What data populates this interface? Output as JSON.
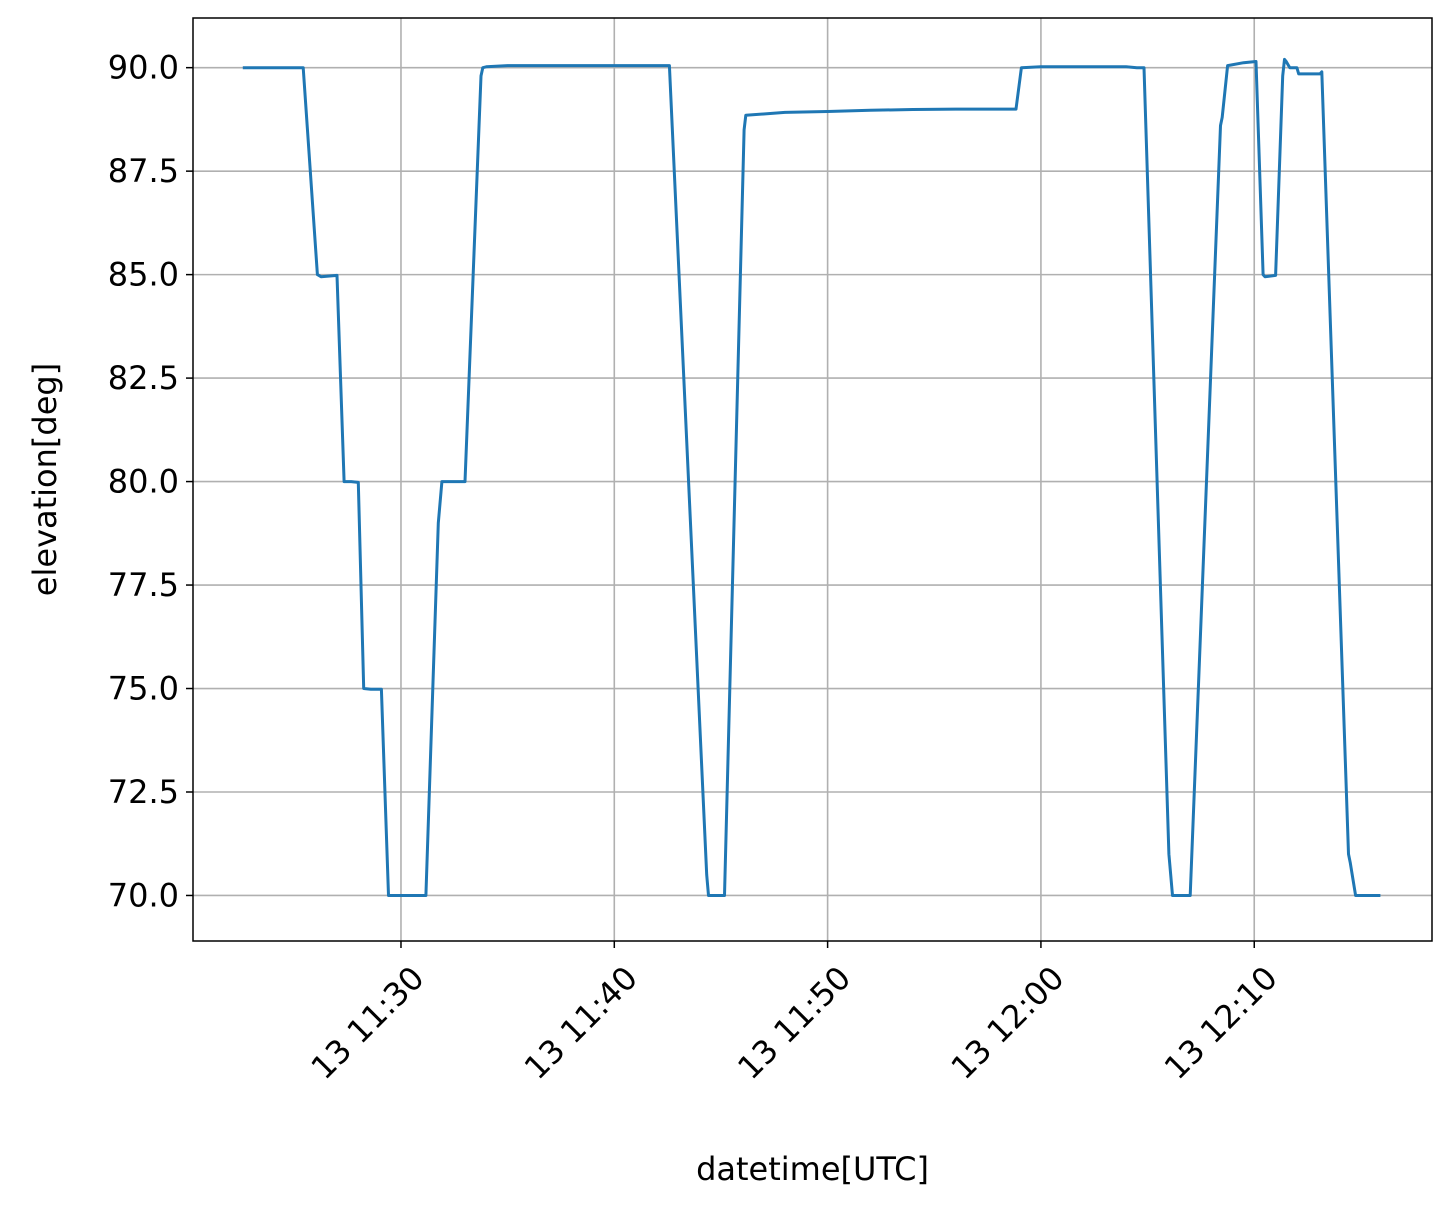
{
  "chart_data": {
    "type": "line",
    "xlabel": "datetime[UTC]",
    "ylabel": "elevation[deg]",
    "xlim": [
      "11:20:15",
      "12:18:20"
    ],
    "ylim": [
      68.9,
      91.2
    ],
    "grid": true,
    "x_ticks": [
      {
        "value": "11:30",
        "label": "13 11:30"
      },
      {
        "value": "11:40",
        "label": "13 11:40"
      },
      {
        "value": "11:50",
        "label": "13 11:50"
      },
      {
        "value": "12:00",
        "label": "13 12:00"
      },
      {
        "value": "12:10",
        "label": "13 12:10"
      }
    ],
    "y_ticks": [
      {
        "value": 70.0,
        "label": "70.0"
      },
      {
        "value": 72.5,
        "label": "72.5"
      },
      {
        "value": 75.0,
        "label": "75.0"
      },
      {
        "value": 77.5,
        "label": "77.5"
      },
      {
        "value": 80.0,
        "label": "80.0"
      },
      {
        "value": 82.5,
        "label": "82.5"
      },
      {
        "value": 85.0,
        "label": "85.0"
      },
      {
        "value": 87.5,
        "label": "87.5"
      },
      {
        "value": 90.0,
        "label": "90.0"
      }
    ],
    "series": [
      {
        "color": "#1f77b4",
        "x": [
          "11:22:35",
          "11:25:25",
          "11:26:05",
          "11:26:15",
          "11:27:00",
          "11:27:20",
          "11:27:40",
          "11:28:00",
          "11:28:15",
          "11:28:35",
          "11:29:05",
          "11:29:25",
          "11:29:30",
          "11:31:10",
          "11:31:45",
          "11:31:55",
          "11:32:20",
          "11:33:00",
          "11:33:45",
          "11:33:50",
          "11:34:00",
          "11:35:00",
          "11:42:35",
          "11:44:20",
          "11:44:25",
          "11:44:35",
          "11:45:10",
          "11:46:05",
          "11:46:10",
          "11:47:00",
          "11:48:00",
          "11:50:00",
          "11:52:00",
          "11:54:00",
          "11:56:00",
          "11:58:50",
          "11:59:05",
          "12:00:00",
          "12:02:00",
          "12:04:00",
          "12:04:30",
          "12:04:50",
          "12:06:00",
          "12:06:05",
          "12:06:10",
          "12:06:40",
          "12:07:00",
          "12:08:25",
          "12:08:30",
          "12:08:45",
          "12:09:30",
          "12:10:05",
          "12:10:25",
          "12:10:30",
          "12:11:00",
          "12:11:20",
          "12:11:25",
          "12:11:30",
          "12:11:40",
          "12:12:00",
          "12:12:05",
          "12:12:50",
          "12:13:05",
          "12:13:10",
          "12:14:25",
          "12:14:30",
          "12:14:45",
          "12:15:00",
          "12:15:55"
        ],
        "y": [
          90.0,
          90.0,
          85.0,
          84.95,
          84.98,
          80.0,
          80.0,
          79.98,
          75.0,
          74.98,
          74.98,
          70.0,
          70.0,
          70.0,
          79.0,
          80.0,
          80.0,
          80.0,
          89.8,
          90.0,
          90.02,
          90.05,
          90.05,
          70.5,
          70.0,
          70.0,
          70.0,
          88.5,
          88.85,
          88.88,
          88.92,
          88.94,
          88.97,
          88.99,
          89.0,
          89.0,
          90.0,
          90.02,
          90.02,
          90.02,
          90.0,
          90.0,
          71.0,
          70.5,
          70.0,
          70.0,
          70.0,
          88.6,
          88.8,
          90.05,
          90.12,
          90.15,
          85.0,
          84.95,
          84.98,
          89.8,
          90.2,
          90.15,
          90.0,
          90.0,
          89.85,
          89.85,
          89.85,
          89.9,
          71.0,
          70.8,
          70.0,
          70.0,
          70.0
        ]
      }
    ]
  }
}
